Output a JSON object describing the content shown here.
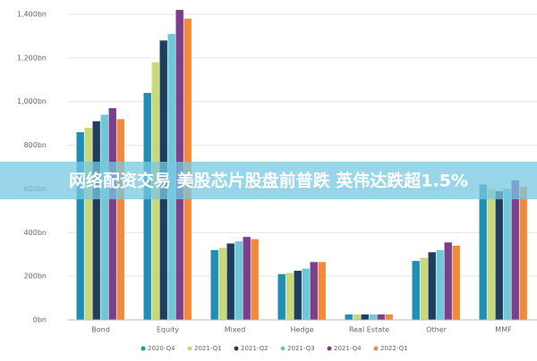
{
  "chart_data": {
    "type": "bar",
    "categories": [
      "Bond",
      "Equity",
      "Mixed",
      "Hedge",
      "Real Estate",
      "Other",
      "MMF"
    ],
    "series": [
      {
        "name": "2020-Q4",
        "color": "#1f8fb5",
        "values": [
          860,
          1040,
          320,
          210,
          25,
          270,
          620
        ]
      },
      {
        "name": "2021-Q1",
        "color": "#c9d87a",
        "values": [
          880,
          1180,
          330,
          215,
          25,
          285,
          600
        ]
      },
      {
        "name": "2021-Q2",
        "color": "#1f3d5c",
        "values": [
          910,
          1280,
          350,
          225,
          25,
          310,
          590
        ]
      },
      {
        "name": "2021-Q3",
        "color": "#6fc8d8",
        "values": [
          940,
          1310,
          360,
          235,
          25,
          320,
          600
        ]
      },
      {
        "name": "2021-Q4",
        "color": "#7b3f8c",
        "values": [
          970,
          1420,
          380,
          265,
          25,
          355,
          640
        ]
      },
      {
        "name": "2022-Q1",
        "color": "#f08a3c",
        "values": [
          920,
          1380,
          370,
          265,
          25,
          340,
          610
        ]
      }
    ],
    "ylim": [
      0,
      1400
    ],
    "yticks": [
      {
        "value": 0,
        "label": "0bn"
      },
      {
        "value": 200,
        "label": "200bn"
      },
      {
        "value": 400,
        "label": "400bn"
      },
      {
        "value": 600,
        "label": "600bn"
      },
      {
        "value": 800,
        "label": "800bn"
      },
      {
        "value": 1000,
        "label": "1,000bn"
      },
      {
        "value": 1200,
        "label": "1,200bn"
      },
      {
        "value": 1400,
        "label": "1,400bn"
      }
    ],
    "grid": true,
    "banner": "网络配资交易 美股芯片股盘前普跌 英伟达跌超1.5%"
  }
}
